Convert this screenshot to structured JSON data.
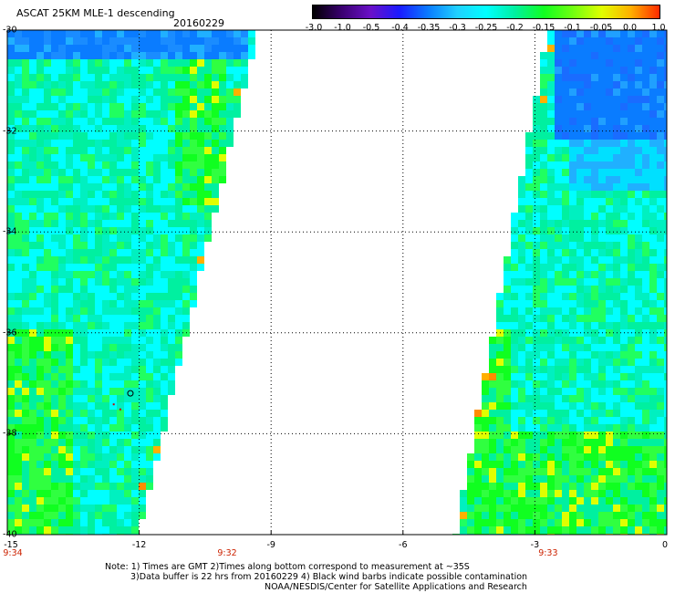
{
  "header": {
    "title": "ASCAT 25KM MLE-1 descending",
    "date": "20160229"
  },
  "colorbar": {
    "ticks": [
      "-3.0",
      "-1.0",
      "-0.5",
      "-0.4",
      "-0.35",
      "-0.3",
      "-0.25",
      "-0.2",
      "-0.15",
      "-0.1",
      "-0.05",
      "0.0",
      "1.0"
    ],
    "colors": [
      "#000000",
      "#3a0070",
      "#6a10c8",
      "#1a1aff",
      "#0a7cff",
      "#20d0ff",
      "#00ffff",
      "#00f0a0",
      "#10ff20",
      "#70ff10",
      "#e0ff00",
      "#ffb000",
      "#ff2a00"
    ]
  },
  "chart_data": {
    "type": "heatmap",
    "x_axis": {
      "range": [
        -15,
        0
      ],
      "ticks": [
        "-15",
        "-12",
        "-9",
        "-6",
        "-3",
        "0"
      ]
    },
    "y_axis": {
      "range": [
        -40,
        -30
      ],
      "ticks": [
        "-30",
        "-32",
        "-34",
        "-36",
        "-38",
        "-40"
      ]
    },
    "grid": "dotted",
    "time_labels": [
      {
        "x": -15,
        "text": "9:34"
      },
      {
        "x": -10,
        "text": "9:32"
      },
      {
        "x": -2.7,
        "text": "9:33"
      }
    ],
    "swaths": [
      {
        "name": "west",
        "lon_min": -15,
        "lon_max_at_north": -9.3,
        "lon_max_at_south": -12
      },
      {
        "name": "east",
        "lon_min_at_north": -2.7,
        "lon_min_at_south": -4.8,
        "lon_max": 0
      }
    ]
  },
  "notes": [
    "Note: 1) Times are GMT 2)Times along bottom correspond to measurement at ~35S",
    "3)Data buffer is 22 hrs from 20160229 4) Black wind barbs indicate possible contamination",
    "NOAA/NESDIS/Center for Satellite Applications and Research"
  ]
}
